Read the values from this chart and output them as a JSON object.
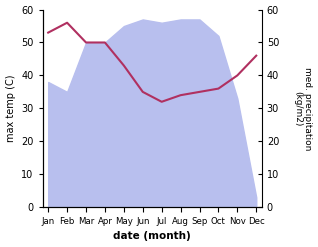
{
  "months": [
    "Jan",
    "Feb",
    "Mar",
    "Apr",
    "May",
    "Jun",
    "Jul",
    "Aug",
    "Sep",
    "Oct",
    "Nov",
    "Dec"
  ],
  "x": [
    0,
    1,
    2,
    3,
    4,
    5,
    6,
    7,
    8,
    9,
    10,
    11
  ],
  "temperature": [
    53,
    56,
    50,
    50,
    43,
    35,
    32,
    34,
    35,
    36,
    40,
    46
  ],
  "precipitation": [
    38,
    35,
    50,
    50,
    55,
    57,
    56,
    57,
    57,
    52,
    33,
    3
  ],
  "temp_color": "#b03060",
  "precip_fill_color": "#b8bfee",
  "ylim": [
    0,
    60
  ],
  "xlabel": "date (month)",
  "ylabel_left": "max temp (C)",
  "ylabel_right": "med. precipitation\n(kg/m2)",
  "yticks": [
    0,
    10,
    20,
    30,
    40,
    50,
    60
  ],
  "bg_color": "#ffffff"
}
